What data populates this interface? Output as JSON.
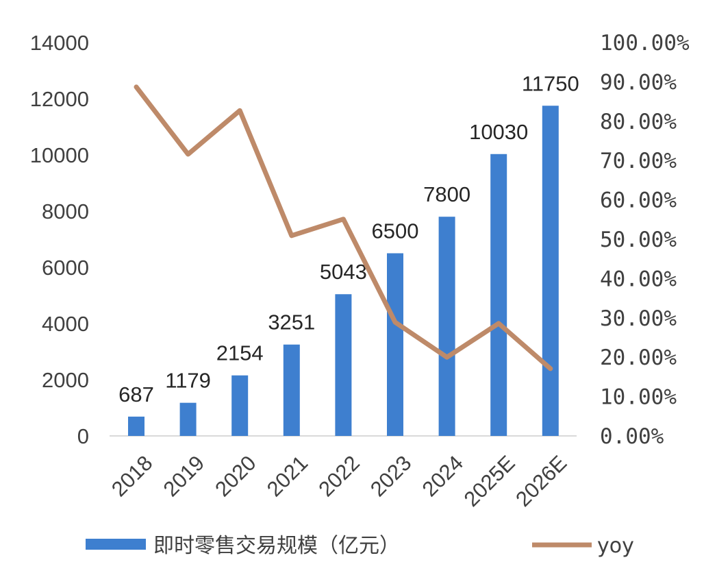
{
  "chart_data": {
    "type": "bar+line",
    "categories": [
      "2018",
      "2019",
      "2020",
      "2021",
      "2022",
      "2023",
      "2024",
      "2025E",
      "2026E"
    ],
    "series": [
      {
        "name": "即时零售交易规模（亿元）",
        "type": "bar",
        "axis": "left",
        "color": "#3E7FCF",
        "values": [
          687,
          1179,
          2154,
          3251,
          5043,
          6500,
          7800,
          10030,
          11750
        ]
      },
      {
        "name": "yoy",
        "type": "line",
        "axis": "right",
        "color": "#BE8A69",
        "values": [
          0.887,
          0.716,
          0.827,
          0.509,
          0.551,
          0.289,
          0.2,
          0.286,
          0.171
        ]
      }
    ],
    "left_axis": {
      "min": 0,
      "max": 14000,
      "ticks": [
        "0",
        "2000",
        "4000",
        "6000",
        "8000",
        "10000",
        "12000",
        "14000"
      ]
    },
    "right_axis": {
      "min": 0,
      "max": 1,
      "ticks": [
        "0.00%",
        "10.00%",
        "20.00%",
        "30.00%",
        "40.00%",
        "50.00%",
        "60.00%",
        "70.00%",
        "80.00%",
        "90.00%",
        "100.00%"
      ]
    },
    "data_labels": [
      "687",
      "1179",
      "2154",
      "3251",
      "5043",
      "6500",
      "7800",
      "10030",
      "11750"
    ],
    "legend_position": "bottom",
    "grid": false
  }
}
